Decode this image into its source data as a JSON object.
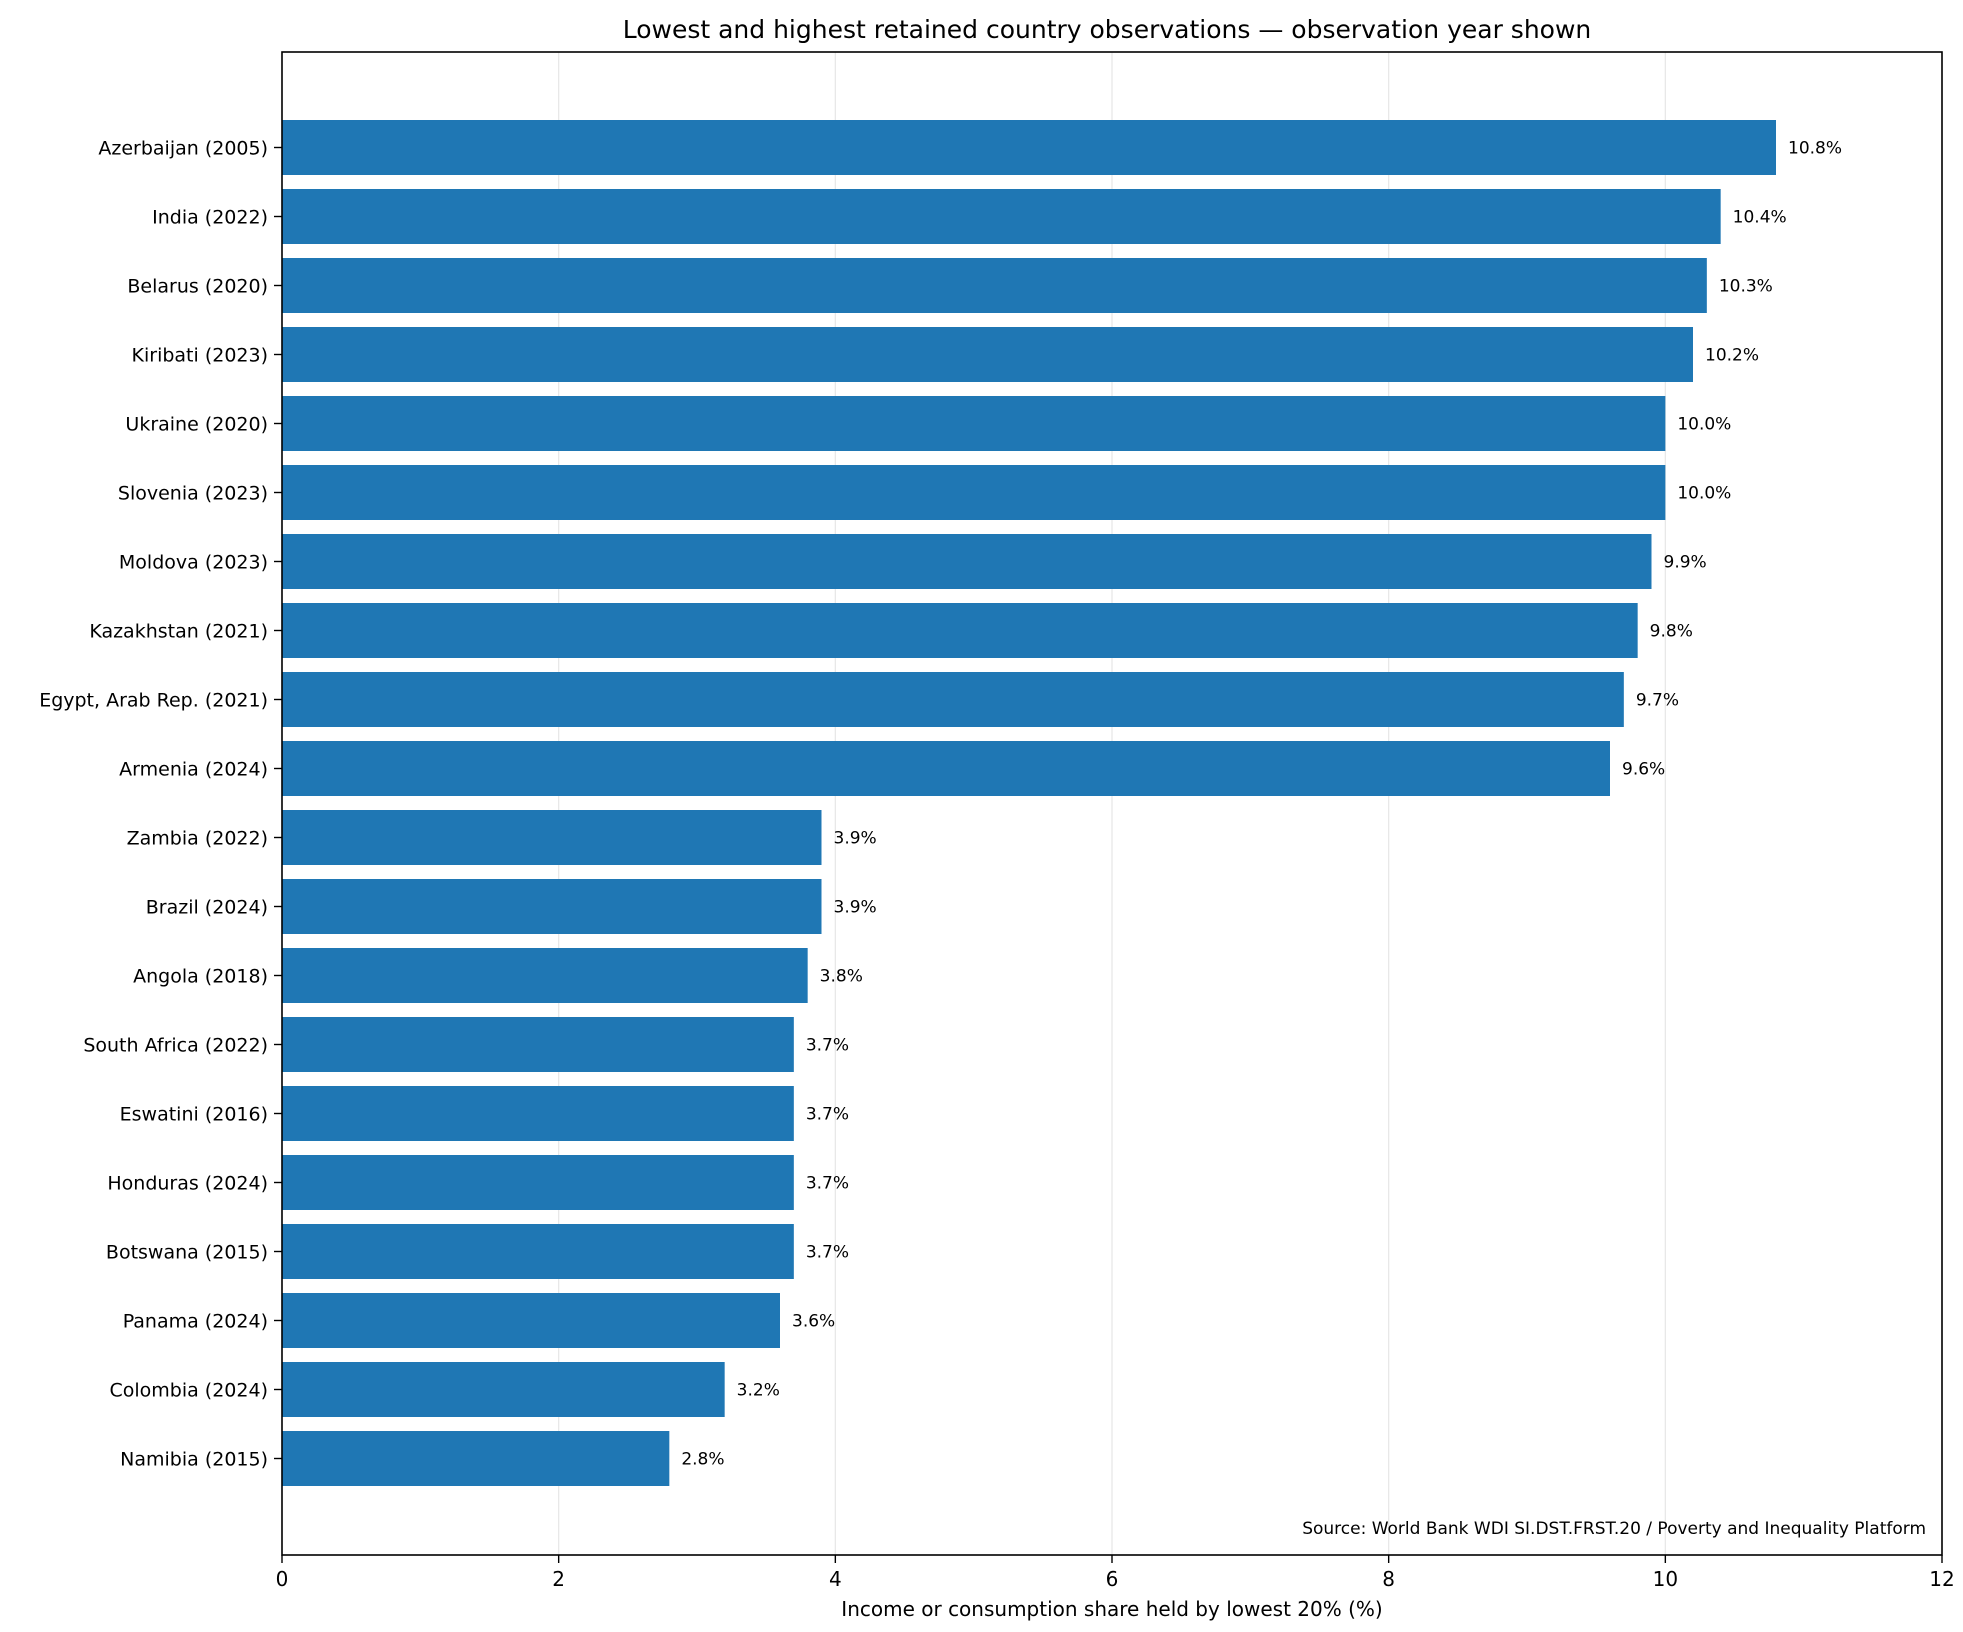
{
  "chart_data": {
    "type": "bar",
    "orientation": "horizontal",
    "title": "Lowest and highest retained country observations — observation year shown",
    "xlabel": "Income or consumption share held by lowest 20% (%)",
    "ylabel": "",
    "xlim": [
      0,
      12
    ],
    "xticks": [
      0,
      2,
      4,
      6,
      8,
      10,
      12
    ],
    "grid": "vertical",
    "bar_color": "#1f77b4",
    "source_note": "Source: World Bank WDI SI.DST.FRST.20 / Poverty and Inequality Platform",
    "categories": [
      "Azerbaijan (2005)",
      "India (2022)",
      "Belarus (2020)",
      "Kiribati (2023)",
      "Ukraine (2020)",
      "Slovenia (2023)",
      "Moldova (2023)",
      "Kazakhstan (2021)",
      "Egypt, Arab Rep. (2021)",
      "Armenia (2024)",
      "Zambia (2022)",
      "Brazil (2024)",
      "Angola (2018)",
      "South Africa (2022)",
      "Eswatini (2016)",
      "Honduras (2024)",
      "Botswana (2015)",
      "Panama (2024)",
      "Colombia (2024)",
      "Namibia (2015)"
    ],
    "values": [
      10.8,
      10.4,
      10.3,
      10.2,
      10.0,
      10.0,
      9.9,
      9.8,
      9.7,
      9.6,
      3.9,
      3.9,
      3.8,
      3.7,
      3.7,
      3.7,
      3.7,
      3.6,
      3.2,
      2.8
    ],
    "data_labels": [
      "10.8%",
      "10.4%",
      "10.3%",
      "10.2%",
      "10.0%",
      "10.0%",
      "9.9%",
      "9.8%",
      "9.7%",
      "9.6%",
      "3.9%",
      "3.9%",
      "3.8%",
      "3.7%",
      "3.7%",
      "3.7%",
      "3.7%",
      "3.6%",
      "3.2%",
      "2.8%"
    ]
  }
}
